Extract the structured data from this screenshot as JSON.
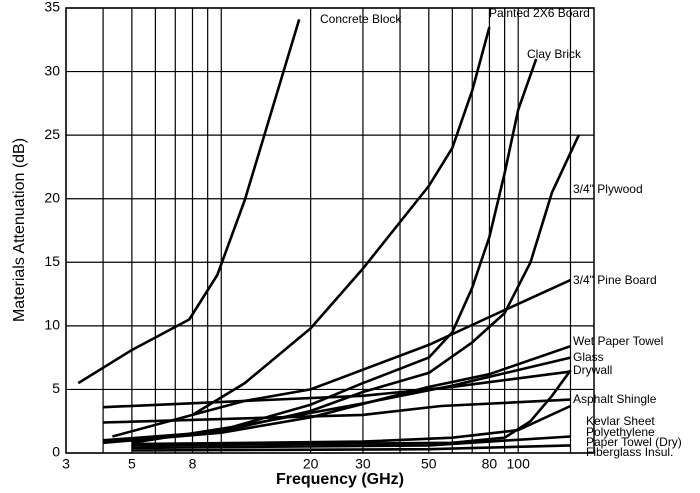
{
  "chart_data": {
    "type": "line",
    "x_label": "Frequency (GHz)",
    "y_label": "Materials Attenuation (dB)",
    "xscale": "log",
    "xlim": [
      3,
      180
    ],
    "ylim": [
      0,
      35
    ],
    "xticks": [
      3,
      5,
      8,
      20,
      30,
      50,
      80,
      100
    ],
    "x_minor_grid": [
      4,
      6,
      7,
      9,
      10,
      40,
      60,
      70,
      90,
      150
    ],
    "yticks": [
      0,
      5,
      10,
      15,
      20,
      25,
      30,
      35
    ],
    "grid": true,
    "series": [
      {
        "name": "Concrete Block",
        "color": "#000000",
        "x": [
          3.3,
          5,
          7.8,
          9.7,
          12,
          18.3
        ],
        "values": [
          5.5,
          8.1,
          10.5,
          14,
          19.9,
          34.1
        ]
      },
      {
        "name": "Painted 2X6 Board",
        "color": "#000000",
        "x": [
          4.3,
          8,
          12,
          20,
          30,
          50,
          60,
          70,
          80
        ],
        "values": [
          1.3,
          3,
          5.5,
          9.8,
          14.5,
          21,
          24,
          28.5,
          33.5
        ]
      },
      {
        "name": "Clay Brick",
        "color": "#000000",
        "x": [
          5,
          10,
          20,
          30,
          50,
          60,
          70,
          80,
          90,
          100,
          115
        ],
        "values": [
          0.9,
          1.8,
          3.8,
          5.5,
          7.5,
          9.5,
          13,
          17,
          22,
          27,
          31
        ]
      },
      {
        "name": "3/4\" Plywood",
        "color": "#000000",
        "x": [
          4,
          10,
          20,
          30,
          50,
          70,
          90,
          110,
          130,
          160
        ],
        "values": [
          1,
          1.7,
          3.3,
          4.8,
          6.3,
          8.7,
          11,
          15,
          20.5,
          25
        ]
      },
      {
        "name": "3/4\" Pine Board",
        "color": "#000000",
        "x": [
          8,
          12,
          20,
          50,
          80,
          150
        ],
        "values": [
          3,
          4.1,
          5,
          8.5,
          10.7,
          13.6
        ]
      },
      {
        "name": "Wet Paper Towel",
        "color": "#000000",
        "x": [
          4,
          10,
          20,
          50,
          80,
          150
        ],
        "values": [
          0.8,
          1.6,
          2.8,
          5.2,
          6.2,
          8.4
        ]
      },
      {
        "name": "Glass",
        "color": "#000000",
        "x": [
          5,
          12,
          30,
          60,
          150
        ],
        "values": [
          0.8,
          2.2,
          3.9,
          5.3,
          7.5
        ]
      },
      {
        "name": "Drywall",
        "color": "#000000",
        "x": [
          4,
          12,
          30,
          60,
          150
        ],
        "values": [
          3.6,
          4.1,
          4.5,
          5.2,
          6.4
        ]
      },
      {
        "name": "Asphalt Shingle",
        "color": "#000000",
        "x": [
          4,
          30,
          55,
          150
        ],
        "values": [
          2.4,
          3,
          3.7,
          4.2
        ]
      },
      {
        "name": "Kevlar Sheet",
        "color": "#000000",
        "x": [
          5,
          30,
          60,
          100,
          150
        ],
        "values": [
          0.7,
          0.9,
          1.2,
          1.8,
          3.7
        ]
      },
      {
        "name": "Polyethylene",
        "color": "#000000",
        "x": [
          5,
          60,
          90,
          110,
          130,
          150
        ],
        "values": [
          0.6,
          0.8,
          1.2,
          2.5,
          4.5,
          6.5
        ]
      },
      {
        "name": "Paper Towel (Dry)",
        "color": "#000000",
        "x": [
          5,
          50,
          150
        ],
        "values": [
          0.4,
          0.6,
          1.3
        ]
      },
      {
        "name": "Fiberglass Insul.",
        "color": "#000000",
        "x": [
          5,
          50,
          150
        ],
        "values": [
          0.2,
          0.3,
          0.6
        ]
      }
    ]
  }
}
